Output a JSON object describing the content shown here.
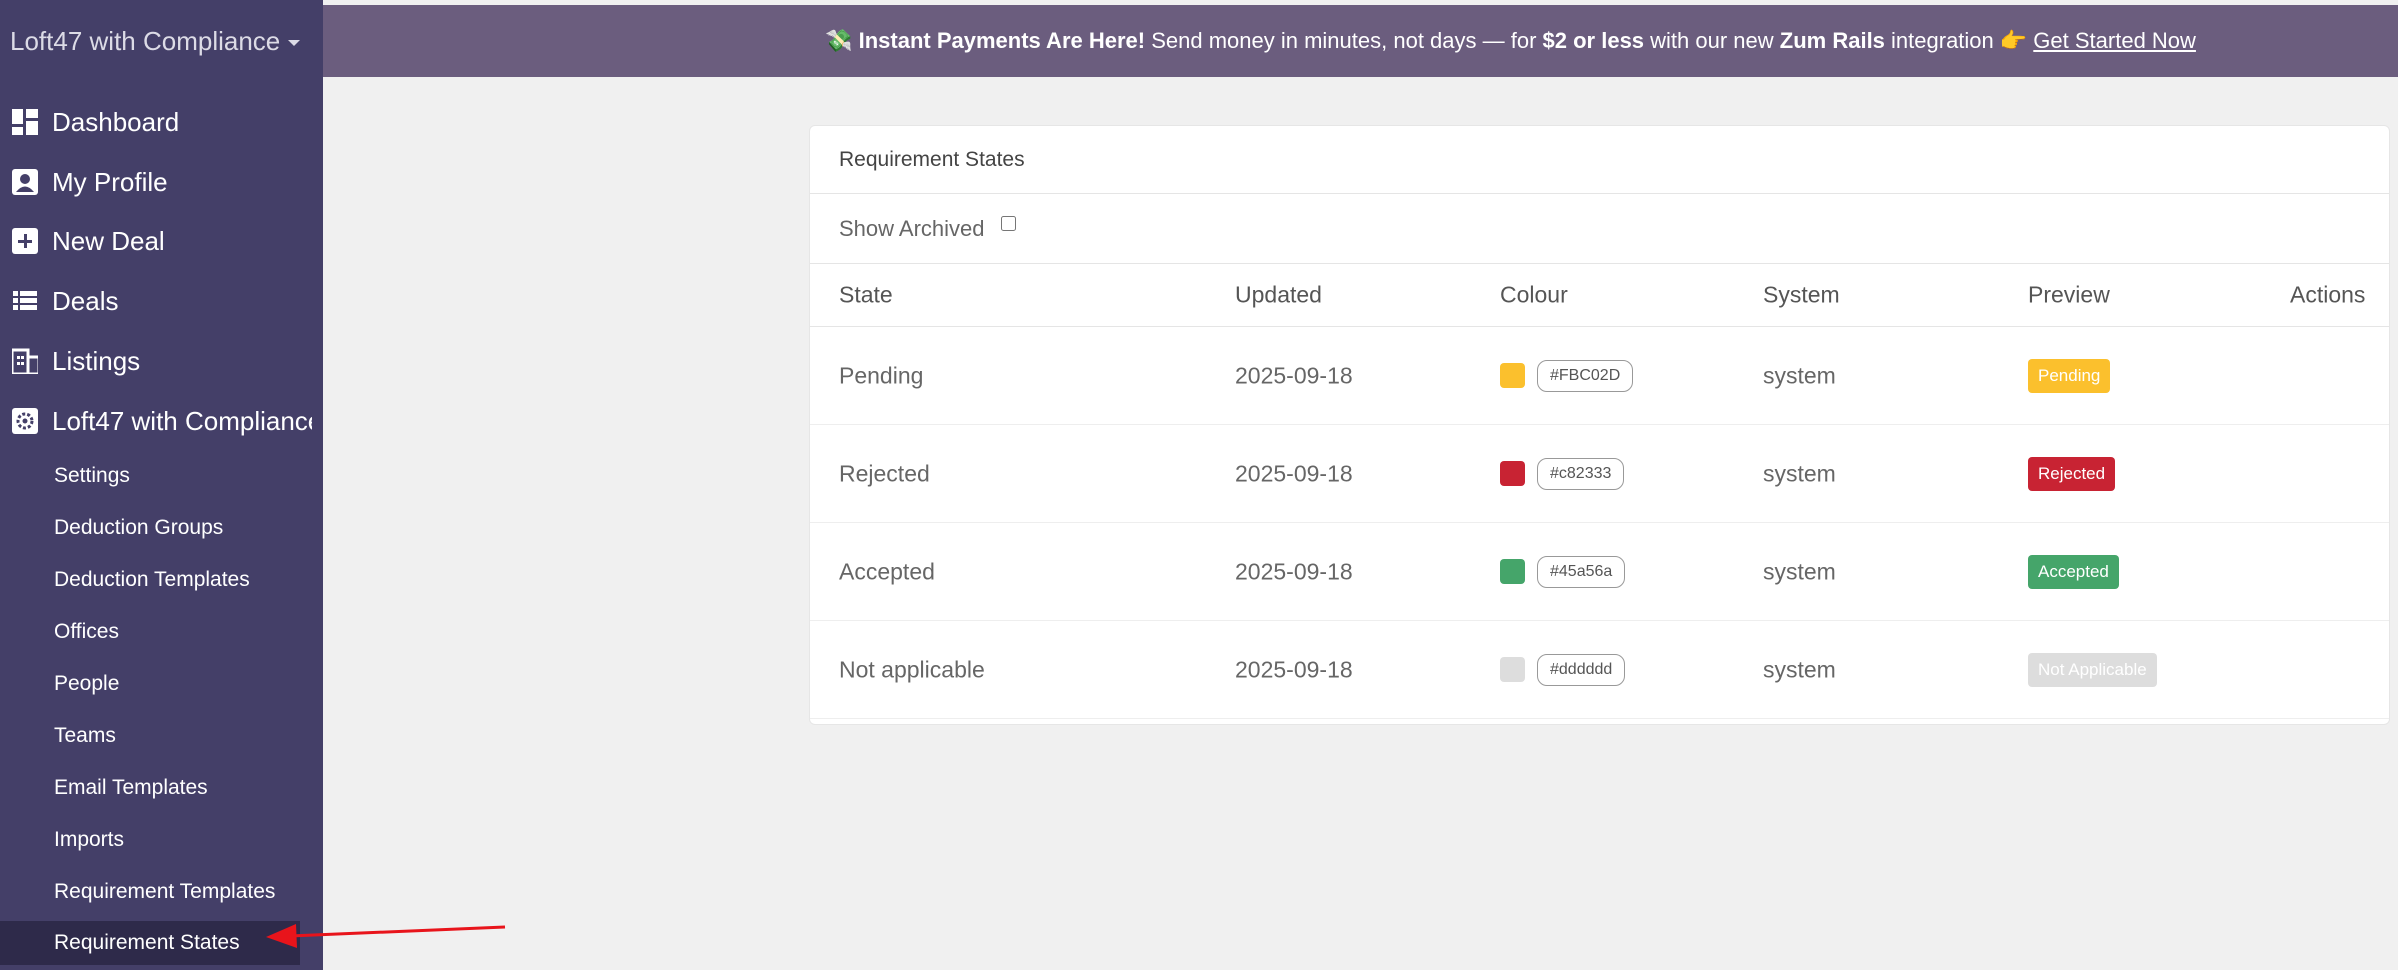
{
  "sidebar": {
    "brand": "Loft47 with Compliance",
    "items": [
      {
        "label": "Dashboard",
        "icon": "dashboard-icon"
      },
      {
        "label": "My Profile",
        "icon": "profile-icon"
      },
      {
        "label": "New Deal",
        "icon": "plus-box-icon"
      },
      {
        "label": "Deals",
        "icon": "list-icon"
      },
      {
        "label": "Listings",
        "icon": "building-icon"
      },
      {
        "label": "Loft47 with Compliance",
        "icon": "gear-box-icon"
      }
    ],
    "subitems": [
      "Settings",
      "Deduction Groups",
      "Deduction Templates",
      "Offices",
      "People",
      "Teams",
      "Email Templates",
      "Imports",
      "Requirement Templates",
      "Requirement States"
    ],
    "active": "Requirement States"
  },
  "banner": {
    "emoji": "💸",
    "bold1": "Instant Payments Are Here!",
    "text1": " Send money in minutes, not days — for ",
    "bold2": "$2 or less",
    "text2": " with our new ",
    "bold3": "Zum Rails",
    "text3": " integration ",
    "emoji2": "👉",
    "link": "Get Started Now"
  },
  "card": {
    "title": "Requirement States",
    "show_archived_label": "Show Archived",
    "show_archived": false,
    "columns": [
      "State",
      "Updated",
      "Colour",
      "System",
      "Preview",
      "Actions"
    ],
    "rows": [
      {
        "state": "Pending",
        "updated": "2025-09-18",
        "colour": "#FBC02D",
        "system": "system",
        "preview": "Pending"
      },
      {
        "state": "Rejected",
        "updated": "2025-09-18",
        "colour": "#c82333",
        "system": "system",
        "preview": "Rejected"
      },
      {
        "state": "Accepted",
        "updated": "2025-09-18",
        "colour": "#45a56a",
        "system": "system",
        "preview": "Accepted"
      },
      {
        "state": "Not applicable",
        "updated": "2025-09-18",
        "colour": "#dddddd",
        "system": "system",
        "preview": "Not Applicable"
      }
    ]
  },
  "colors": {
    "sidebar": "#443f68",
    "banner": "#6b5d7e",
    "arrow": "#e8141b"
  }
}
